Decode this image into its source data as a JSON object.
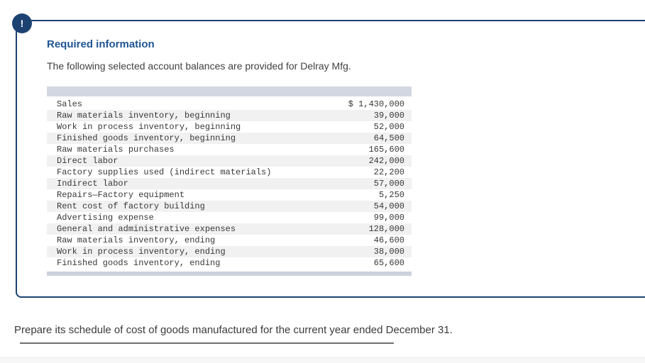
{
  "alert": {
    "icon": "!"
  },
  "panel": {
    "heading": "Required information",
    "intro": "The following selected account balances are provided for Delray Mfg."
  },
  "table": {
    "rows": [
      {
        "label": "Sales",
        "value": "$ 1,430,000"
      },
      {
        "label": "Raw materials inventory, beginning",
        "value": "39,000"
      },
      {
        "label": "Work in process inventory, beginning",
        "value": "52,000"
      },
      {
        "label": "Finished goods inventory, beginning",
        "value": "64,500"
      },
      {
        "label": "Raw materials purchases",
        "value": "165,600"
      },
      {
        "label": "Direct labor",
        "value": "242,000"
      },
      {
        "label": "Factory supplies used (indirect materials)",
        "value": "22,200"
      },
      {
        "label": "Indirect labor",
        "value": "57,000"
      },
      {
        "label": "Repairs—Factory equipment",
        "value": "5,250"
      },
      {
        "label": "Rent cost of factory building",
        "value": "54,000"
      },
      {
        "label": "Advertising expense",
        "value": "99,000"
      },
      {
        "label": "General and administrative expenses",
        "value": "128,000"
      },
      {
        "label": "Raw materials inventory, ending",
        "value": "46,600"
      },
      {
        "label": "Work in process inventory, ending",
        "value": "38,000"
      },
      {
        "label": "Finished goods inventory, ending",
        "value": "65,600"
      }
    ]
  },
  "prompt": "Prepare its schedule of cost of goods manufactured for the current year ended December 31.",
  "colors": {
    "panel_border": "#1c4271",
    "alert_circle": "#1c4271",
    "heading_blue": "#1e5693",
    "table_header_bar": "#d2d7e2",
    "table_footer_bar": "#cbd1dd",
    "alt_row": "#f1f1f2"
  }
}
